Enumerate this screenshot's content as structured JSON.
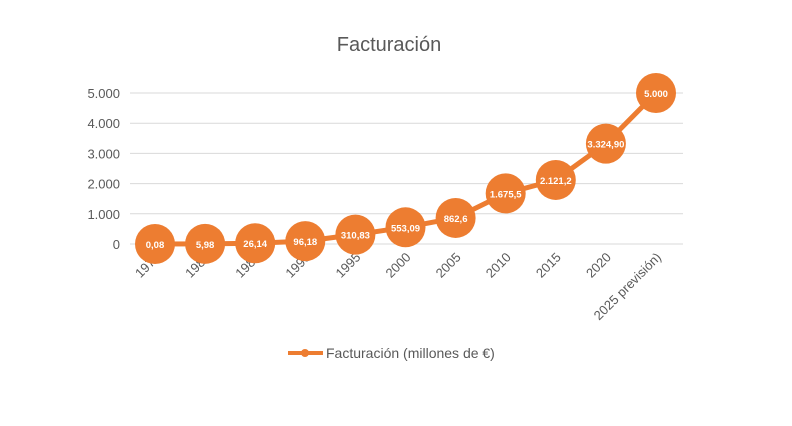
{
  "chart_data": {
    "type": "line",
    "title": "Facturación",
    "xlabel": "",
    "ylabel": "",
    "categories": [
      "1975",
      "1980",
      "1985",
      "1990",
      "1995",
      "2000",
      "2005",
      "2010",
      "2015",
      "2020",
      "2025 previsión)"
    ],
    "series": [
      {
        "name": "Facturación (millones de €)",
        "values": [
          0.08,
          5.98,
          26.14,
          96.18,
          310.83,
          553.09,
          862.6,
          1675.5,
          2121.2,
          3324.9,
          5000
        ],
        "data_labels": [
          "0,08",
          "5,98",
          "26,14",
          "96,18",
          "310,83",
          "553,09",
          "862,6",
          "1.675,5",
          "2.121,2",
          "3.324,90",
          "5.000"
        ],
        "color": "#ED7D31"
      }
    ],
    "ylim": [
      0,
      5000
    ],
    "yticks": [
      0,
      1000,
      2000,
      3000,
      4000,
      5000
    ],
    "ytick_labels": [
      "0",
      "1.000",
      "2.000",
      "3.000",
      "4.000",
      "5.000"
    ],
    "grid": true,
    "legend_position": "bottom"
  }
}
